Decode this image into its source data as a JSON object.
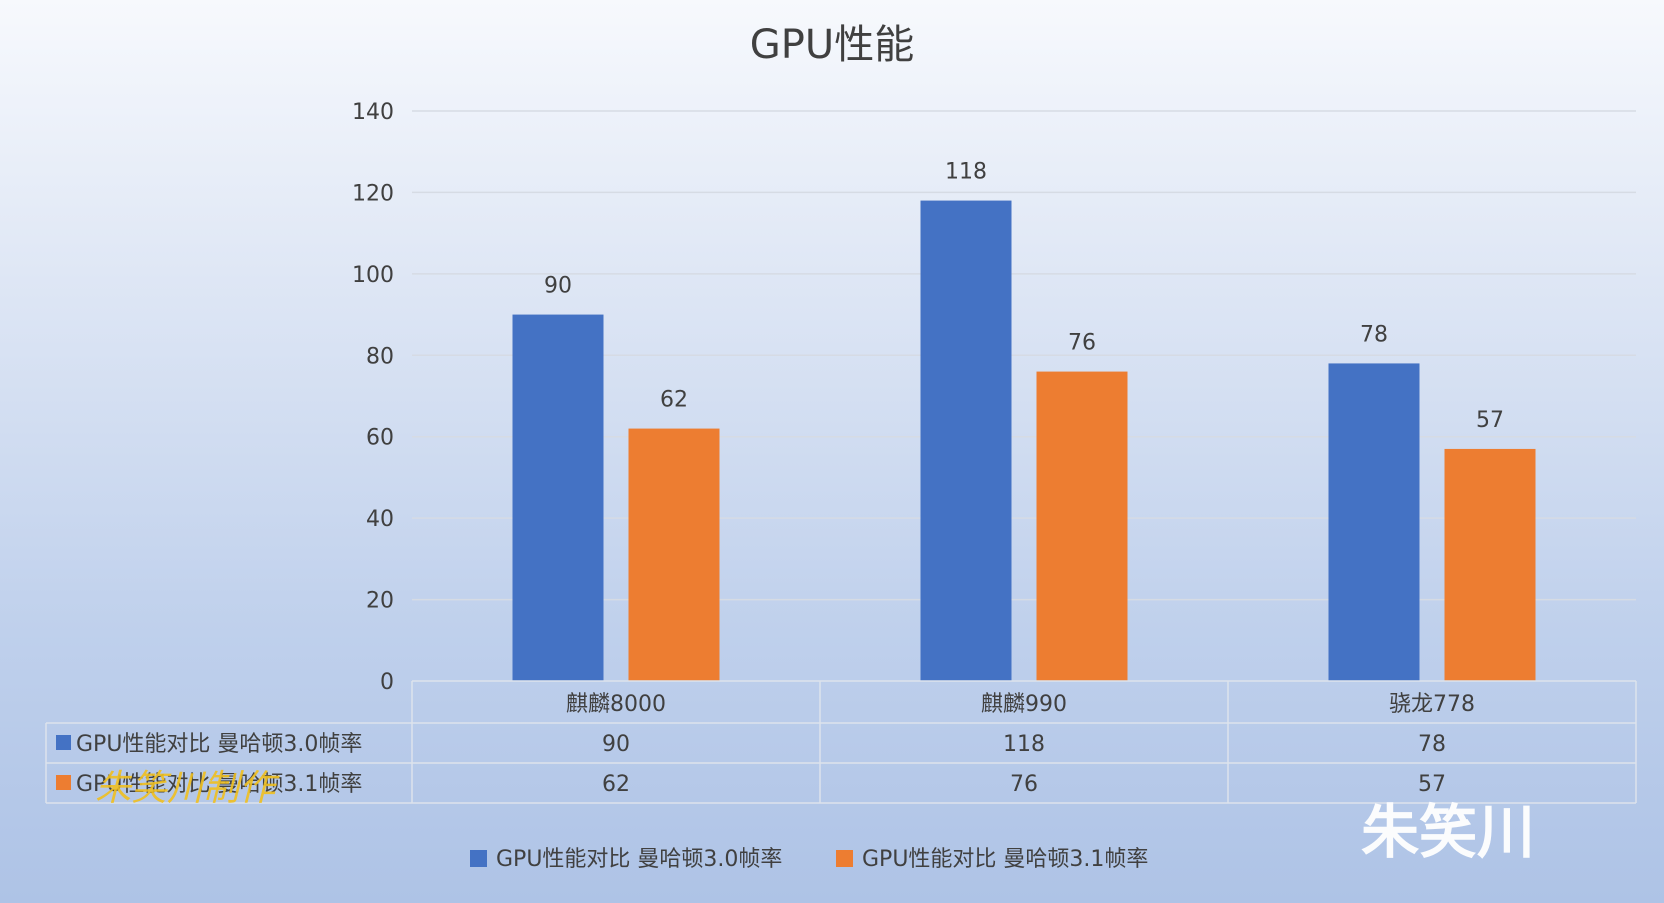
{
  "chart_data": {
    "type": "bar",
    "title": "GPU性能",
    "categories": [
      "麒麟8000",
      "麒麟990",
      "骁龙778"
    ],
    "series": [
      {
        "name": "GPU性能对比 曼哈顿3.0帧率",
        "color": "#4472c4",
        "values": [
          90,
          118,
          78
        ]
      },
      {
        "name": "GPU性能对比 曼哈顿3.1帧率",
        "color": "#ed7d31",
        "values": [
          62,
          76,
          57
        ]
      }
    ],
    "ylim": [
      0,
      140
    ],
    "yticks": [
      0,
      20,
      40,
      60,
      80,
      100,
      120,
      140
    ],
    "grid": true,
    "data_table": true,
    "legend": "bottom"
  },
  "watermarks": {
    "overlay": "朱笑川制作",
    "corner": "朱笑川"
  }
}
